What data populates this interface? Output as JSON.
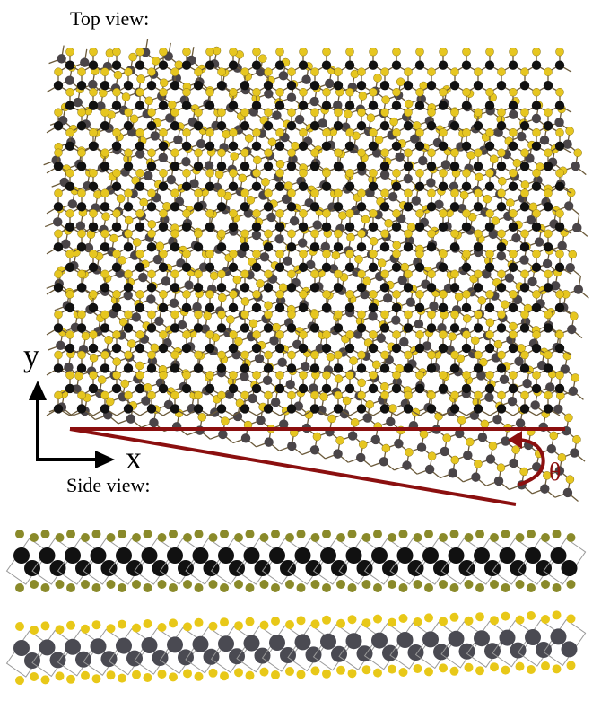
{
  "top_view": {
    "label": "Top view:"
  },
  "axes": {
    "y": "y",
    "x": "x"
  },
  "angle": {
    "symbol": "θ"
  },
  "side_view": {
    "label": "Side view:"
  }
}
